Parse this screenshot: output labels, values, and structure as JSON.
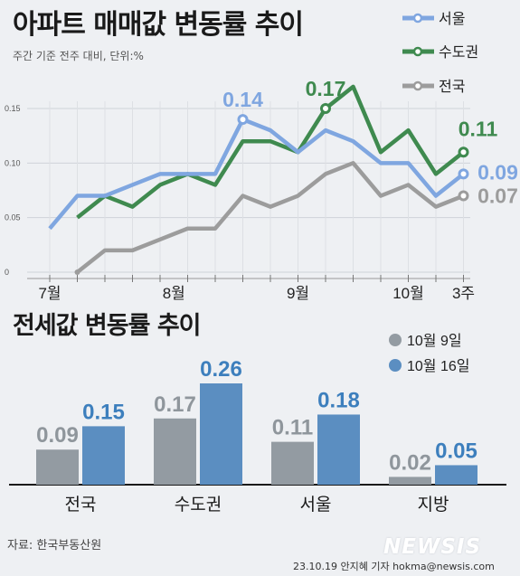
{
  "line_chart": {
    "title": "아파트 매매값 변동률 추이",
    "subtitle": "주간 기준 전주 대비, 단위:%"
  },
  "bar_chart": {
    "title": "전세값 변동률 추이"
  },
  "footer": {
    "source": "자료: 한국부동산원",
    "credit": "23.10.19 안지혜 기자 hokma@newsis.com",
    "watermark": "NEWSIS"
  },
  "colors": {
    "seoul": "#7fa6e0",
    "capital": "#3f8a4f",
    "national": "#9c9c9c",
    "bar_prev": "#939ba2",
    "bar_curr": "#5b8ec1",
    "label_prev": "#8f969c",
    "label_curr": "#3d7fbd"
  },
  "chart_data": [
    {
      "type": "line",
      "title": "아파트 매매값 변동률 추이",
      "subtitle": "주간 기준 전주 대비, 단위:%",
      "ylim": [
        0,
        0.15
      ],
      "yticks": [
        "0",
        "0.05",
        "0.10",
        "0.15"
      ],
      "x_tick_labels": [
        "7월",
        "8월",
        "9월",
        "10월",
        "3주"
      ],
      "x_tick_index": [
        0,
        4.5,
        9,
        13,
        15
      ],
      "grid": true,
      "legend_position": "top-right",
      "series": [
        {
          "name": "서울",
          "key": "seoul",
          "values": [
            0.04,
            0.07,
            0.07,
            0.08,
            0.09,
            0.09,
            0.09,
            0.14,
            0.13,
            0.11,
            0.13,
            0.12,
            0.1,
            0.1,
            0.07,
            0.09
          ],
          "end_label": "0.09",
          "peak_label": "0.14",
          "peak_index": 7
        },
        {
          "name": "수도권",
          "key": "capital",
          "values": [
            0.05,
            0.07,
            0.06,
            0.08,
            0.09,
            0.08,
            0.12,
            0.12,
            0.11,
            0.15,
            0.17,
            0.11,
            0.13,
            0.09,
            0.11
          ],
          "end_label": "0.11",
          "peak_label": "0.17",
          "peak_index": 10,
          "x_offset": 1
        },
        {
          "name": "전국",
          "key": "national",
          "values": [
            0.0,
            0.02,
            0.02,
            0.03,
            0.04,
            0.04,
            0.07,
            0.06,
            0.07,
            0.09,
            0.1,
            0.07,
            0.08,
            0.06,
            0.07
          ],
          "end_label": "0.07",
          "x_offset": 1
        }
      ]
    },
    {
      "type": "bar",
      "title": "전세값 변동률 추이",
      "categories": [
        "전국",
        "수도권",
        "서울",
        "지방"
      ],
      "ylim": [
        0,
        0.26
      ],
      "legend_position": "top-right",
      "series": [
        {
          "name": "10월 9일",
          "key": "prev",
          "values": [
            0.09,
            0.17,
            0.11,
            0.02
          ],
          "labels": [
            "0.09",
            "0.17",
            "0.11",
            "0.02"
          ]
        },
        {
          "name": "10월 16일",
          "key": "curr",
          "values": [
            0.15,
            0.26,
            0.18,
            0.05
          ],
          "labels": [
            "0.15",
            "0.26",
            "0.18",
            "0.05"
          ]
        }
      ]
    }
  ]
}
